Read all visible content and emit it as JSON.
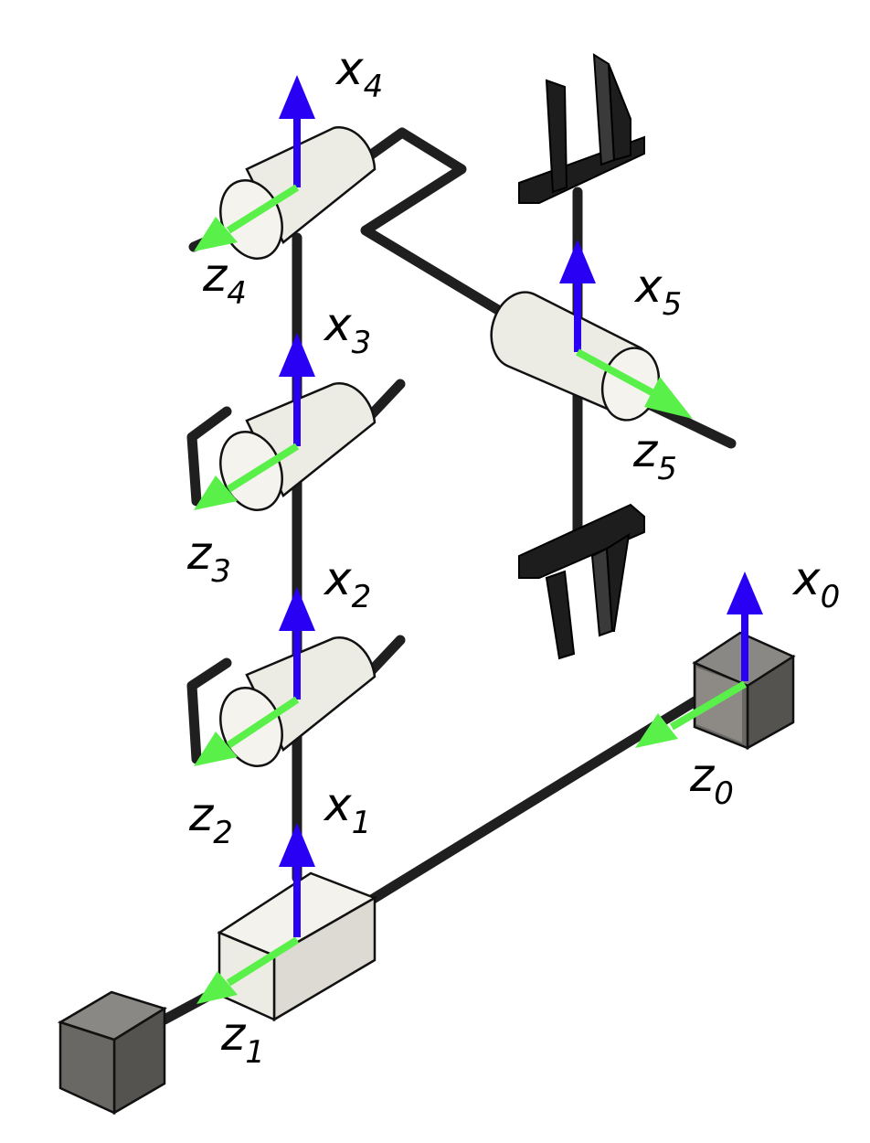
{
  "frames": [
    {
      "axis": "x",
      "index": "4"
    },
    {
      "axis": "z",
      "index": "4"
    },
    {
      "axis": "x",
      "index": "3"
    },
    {
      "axis": "z",
      "index": "3"
    },
    {
      "axis": "x",
      "index": "2"
    },
    {
      "axis": "z",
      "index": "2"
    },
    {
      "axis": "x",
      "index": "1"
    },
    {
      "axis": "z",
      "index": "1"
    },
    {
      "axis": "x",
      "index": "5"
    },
    {
      "axis": "z",
      "index": "5"
    },
    {
      "axis": "x",
      "index": "0"
    },
    {
      "axis": "z",
      "index": "0"
    }
  ],
  "colors": {
    "x_axis": "#2a00f5",
    "z_axis": "#5af04a",
    "link": "#1f1f1f",
    "joint": "#ecebe4",
    "cube": "#6a6864"
  }
}
